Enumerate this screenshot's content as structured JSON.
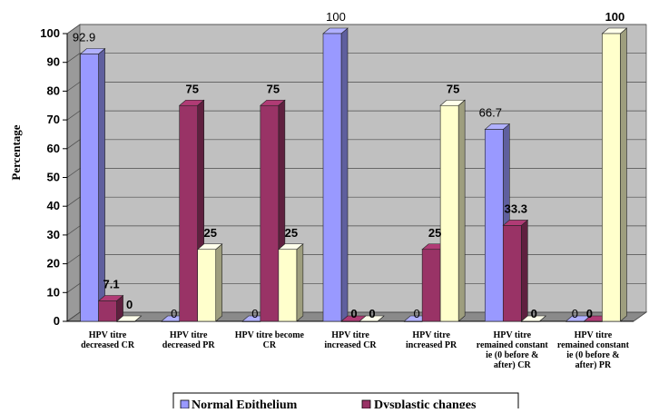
{
  "chart_data": {
    "type": "bar",
    "ylabel": "Percentage",
    "xlabel": "",
    "ylim": [
      0,
      100
    ],
    "yticks": [
      "0",
      "10",
      "20",
      "30",
      "40",
      "50",
      "60",
      "70",
      "80",
      "90",
      "100"
    ],
    "grid": true,
    "legend_position": "bottom",
    "categories": [
      [
        "HPV titre",
        "decreased CR"
      ],
      [
        "HPV titre",
        "decreased PR"
      ],
      [
        "HPV titre become",
        "CR"
      ],
      [
        "HPV titre",
        "increased CR"
      ],
      [
        "HPV titre",
        "increased PR"
      ],
      [
        "HPV titre",
        "remained constant",
        "ie (0 before &",
        "after) CR"
      ],
      [
        "HPV titre",
        "remained constant",
        "ie (0 before &",
        "after) PR"
      ]
    ],
    "series": [
      {
        "name": "Normal Epithelium",
        "color": "#9999FF",
        "values": [
          92.9,
          0,
          0,
          100,
          0,
          66.7,
          0
        ],
        "labels": [
          "92.9",
          "0",
          "0",
          "100",
          "0",
          "66.7",
          "0"
        ]
      },
      {
        "name": "Dysplastic changes",
        "color": "#993366",
        "values": [
          7.1,
          75,
          75,
          0,
          25,
          33.3,
          0
        ],
        "labels": [
          "7.1",
          "75",
          "75",
          "0",
          "25",
          "33.3",
          "0"
        ]
      },
      {
        "name": "",
        "color": "#FFFFCC",
        "values": [
          0,
          25,
          25,
          0,
          75,
          0,
          100
        ],
        "labels": [
          "0",
          "25",
          "25",
          "0",
          "75",
          "0",
          "100"
        ]
      }
    ]
  }
}
